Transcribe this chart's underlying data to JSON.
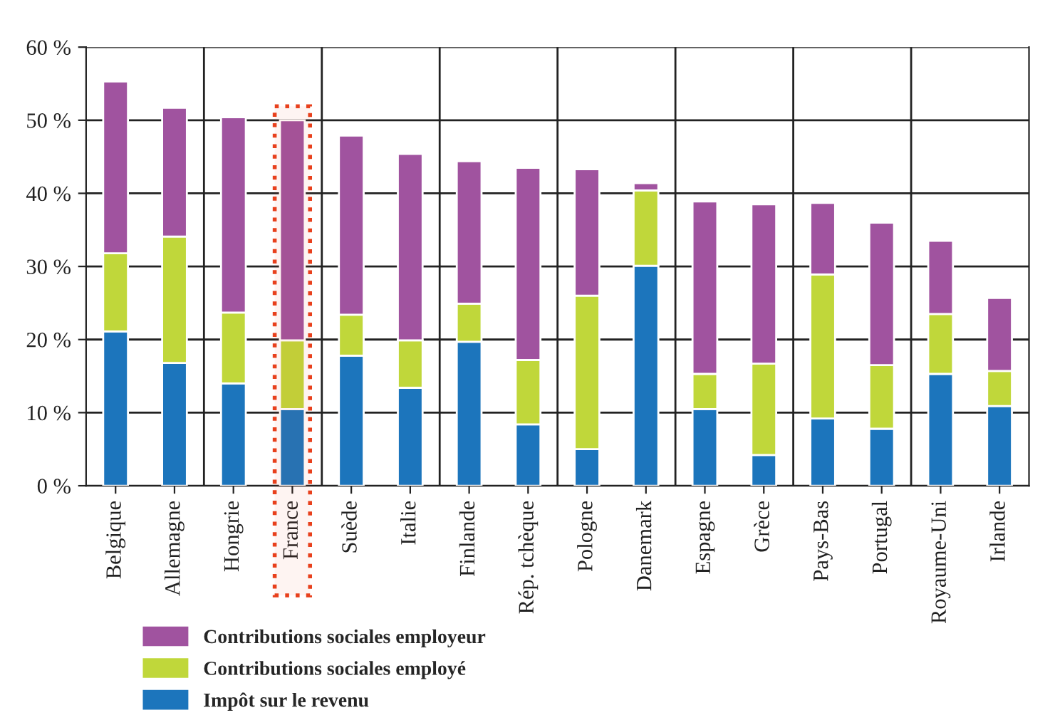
{
  "chart_data": {
    "type": "bar",
    "stacked": true,
    "categories": [
      "Belgique",
      "Allemagne",
      "Hongrie",
      "France",
      "Suède",
      "Italie",
      "Finlande",
      "Rép. tchèque",
      "Pologne",
      "Danemark",
      "Espagne",
      "Grèce",
      "Pays-Bas",
      "Portugal",
      "Royaume-Uni",
      "Irlande"
    ],
    "series": [
      {
        "name": "Impôt sur le revenu",
        "color": "#1c75bc",
        "values": [
          21.1,
          16.8,
          14.0,
          10.5,
          17.8,
          13.4,
          19.7,
          8.4,
          5.0,
          30.1,
          10.5,
          4.2,
          9.2,
          7.8,
          15.3,
          10.9
        ]
      },
      {
        "name": "Contributions sociales employé",
        "color": "#c0d73a",
        "values": [
          10.7,
          17.3,
          9.7,
          9.4,
          5.6,
          6.5,
          5.2,
          8.8,
          21.0,
          10.3,
          4.8,
          12.5,
          19.7,
          8.7,
          8.2,
          4.8
        ]
      },
      {
        "name": "Contributions sociales employeur",
        "color": "#a0539f",
        "values": [
          23.5,
          17.6,
          26.7,
          30.1,
          24.5,
          25.5,
          19.5,
          26.3,
          17.3,
          1.0,
          23.6,
          21.8,
          9.8,
          19.5,
          10.0,
          10.0
        ]
      }
    ],
    "ylim": [
      0,
      60
    ],
    "yticks": [
      {
        "value": 0,
        "label": "0 %"
      },
      {
        "value": 10,
        "label": "10 %"
      },
      {
        "value": 20,
        "label": "20 %"
      },
      {
        "value": 30,
        "label": "30 %"
      },
      {
        "value": 40,
        "label": "40 %"
      },
      {
        "value": 50,
        "label": "50 %"
      },
      {
        "value": 60,
        "label": "60 %"
      }
    ],
    "grid": true,
    "legend": "bottom left",
    "bands": [
      {
        "axis": "x",
        "from": "France",
        "to": "France",
        "color": "#e8401c"
      }
    ]
  }
}
